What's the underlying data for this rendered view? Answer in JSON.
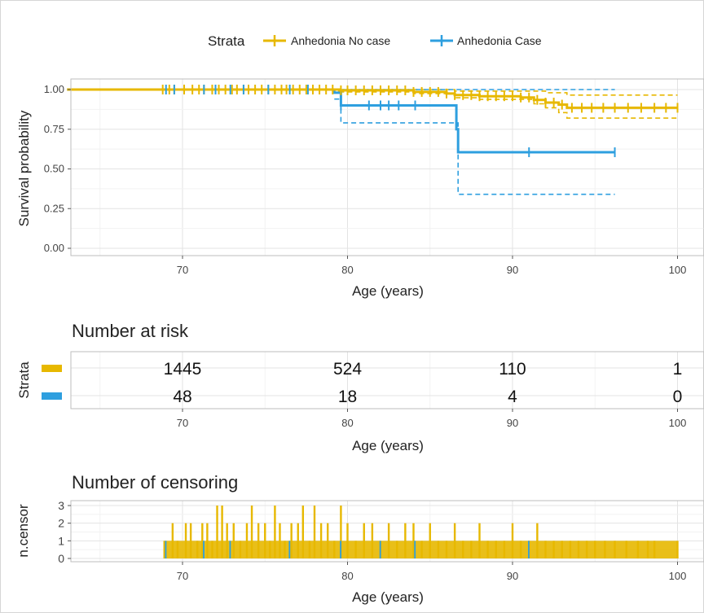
{
  "legend": {
    "title": "Strata",
    "items": [
      {
        "label": "Anhedonia No case",
        "color": "#E7B800"
      },
      {
        "label": "Anhedonia Case",
        "color": "#2E9FDF"
      }
    ],
    "placement": "top"
  },
  "colors": {
    "no_case": "#E7B800",
    "case": "#2E9FDF",
    "grid": "#e6e6e6",
    "panel_border": "#bdbdbd"
  },
  "chart_data": [
    {
      "type": "line",
      "subtype": "kaplan-meier",
      "xlabel": "Age (years)",
      "ylabel": "Survival probability",
      "xlim": [
        63,
        101
      ],
      "ylim": [
        0,
        1
      ],
      "xticks": [
        70,
        80,
        90,
        100
      ],
      "yticks": [
        0,
        0.25,
        0.5,
        0.75,
        1
      ],
      "ytick_labels": [
        "0.00",
        "0.25",
        "0.50",
        "0.75",
        "1.00"
      ],
      "grid": true,
      "series": [
        {
          "name": "Anhedonia No case",
          "color": "#E7B800",
          "steps": [
            [
              63,
              1.0
            ],
            [
              79.5,
              0.995
            ],
            [
              84,
              0.985
            ],
            [
              86,
              0.975
            ],
            [
              86.5,
              0.965
            ],
            [
              88,
              0.958
            ],
            [
              90.5,
              0.95
            ],
            [
              91.3,
              0.935
            ],
            [
              92,
              0.918
            ],
            [
              92.8,
              0.905
            ],
            [
              93.3,
              0.885
            ],
            [
              100,
              0.885
            ]
          ],
          "ci_upper": [
            [
              79.5,
              1.0
            ],
            [
              86.5,
              0.99
            ],
            [
              92,
              0.98
            ],
            [
              93.3,
              0.965
            ],
            [
              100,
              0.965
            ]
          ],
          "ci_lower": [
            [
              79.5,
              0.985
            ],
            [
              84,
              0.975
            ],
            [
              86.5,
              0.948
            ],
            [
              88,
              0.938
            ],
            [
              91.3,
              0.91
            ],
            [
              92,
              0.885
            ],
            [
              92.8,
              0.855
            ],
            [
              93.3,
              0.82
            ],
            [
              100,
              0.82
            ]
          ],
          "censor_x": [
            68.8,
            69.2,
            69.5,
            70.1,
            70.6,
            71.0,
            71.3,
            71.8,
            72.2,
            72.6,
            73.0,
            73.3,
            73.7,
            74.0,
            74.4,
            74.8,
            75.2,
            75.6,
            76.0,
            76.3,
            76.7,
            77.1,
            77.5,
            77.9,
            78.3,
            78.7,
            79.1,
            79.6,
            80.0,
            80.5,
            81.0,
            81.5,
            82.0,
            82.5,
            83.0,
            83.5,
            84.0,
            84.5,
            85.0,
            85.5,
            86.0,
            86.5,
            87.0,
            87.5,
            88.0,
            88.5,
            89.0,
            89.5,
            90.0,
            90.5,
            91.0,
            91.5,
            92.0,
            92.5,
            93.0,
            93.6,
            94.2,
            94.8,
            95.5,
            96.2,
            97.0,
            97.8,
            98.6,
            99.3,
            100.0
          ]
        },
        {
          "name": "Anhedonia Case",
          "color": "#2E9FDF",
          "steps": [
            [
              63,
              1.0
            ],
            [
              79.2,
              0.98
            ],
            [
              79.6,
              0.9
            ],
            [
              86.5,
              0.9
            ],
            [
              86.6,
              0.75
            ],
            [
              86.7,
              0.605
            ],
            [
              96.2,
              0.605
            ]
          ],
          "ci_upper": [
            [
              79.2,
              1.0
            ],
            [
              96.2,
              1.0
            ]
          ],
          "ci_lower": [
            [
              79.2,
              0.94
            ],
            [
              79.6,
              0.79
            ],
            [
              86.5,
              0.79
            ],
            [
              86.7,
              0.34
            ],
            [
              96.2,
              0.34
            ]
          ],
          "censor_x": [
            69.0,
            69.5,
            71.3,
            72.0,
            72.9,
            73.7,
            75.2,
            76.5,
            77.6,
            79.6,
            81.3,
            82.0,
            82.5,
            83.1,
            84.1,
            91.0,
            96.2
          ]
        }
      ]
    },
    {
      "type": "table",
      "title": "Number at risk",
      "ylabel": "Strata",
      "xlabel": "Age (years)",
      "xticks": [
        70,
        80,
        90,
        100
      ],
      "rows": [
        {
          "color": "#E7B800",
          "values": [
            "1445",
            "524",
            "110",
            "1"
          ]
        },
        {
          "color": "#2E9FDF",
          "values": [
            "48",
            "18",
            "4",
            "0"
          ]
        }
      ]
    },
    {
      "type": "bar",
      "title": "Number of censoring",
      "ylabel": "n.censor",
      "xlabel": "Age (years)",
      "xticks": [
        70,
        80,
        90,
        100
      ],
      "yticks": [
        0,
        1,
        2,
        3
      ],
      "ylim": [
        0,
        3
      ],
      "series": [
        {
          "color": "#E7B800",
          "x": [
            68.9,
            69.4,
            69.7,
            70.2,
            70.5,
            70.9,
            71.2,
            71.5,
            71.8,
            72.1,
            72.4,
            72.7,
            73.1,
            73.5,
            73.9,
            74.2,
            74.6,
            75.0,
            75.3,
            75.6,
            75.9,
            76.2,
            76.6,
            77.0,
            77.3,
            77.7,
            78.0,
            78.4,
            78.8,
            79.2,
            79.6,
            80.0,
            80.5,
            81.0,
            81.5,
            82.0,
            82.5,
            83.0,
            83.5,
            84.0,
            84.5,
            85.0,
            85.5,
            86.0,
            86.5,
            87.0,
            87.5,
            88.0,
            88.5,
            89.0,
            89.5,
            90.0,
            90.5,
            91.0,
            91.5,
            92.0,
            92.5,
            93.0,
            93.5,
            94.0,
            94.5,
            95.0,
            95.6,
            96.2,
            96.9,
            97.6,
            98.2,
            98.6,
            100.0
          ],
          "values": [
            1,
            2,
            1,
            2,
            2,
            1,
            2,
            2,
            1,
            3,
            3,
            2,
            2,
            1,
            2,
            3,
            2,
            2,
            1,
            3,
            2,
            1,
            2,
            2,
            3,
            1,
            3,
            2,
            2,
            1,
            3,
            2,
            1,
            2,
            2,
            1,
            2,
            1,
            2,
            2,
            1,
            2,
            1,
            1,
            2,
            1,
            1,
            2,
            1,
            1,
            1,
            2,
            1,
            1,
            2,
            1,
            1,
            1,
            1,
            1,
            1,
            1,
            1,
            1,
            1,
            1,
            1,
            1,
            1
          ]
        },
        {
          "color": "#2E9FDF",
          "x": [
            69.0,
            71.3,
            72.9,
            76.5,
            79.6,
            82.0,
            84.1,
            91.0
          ],
          "values": [
            1,
            1,
            1,
            1,
            1,
            1,
            1,
            1
          ]
        }
      ]
    }
  ]
}
